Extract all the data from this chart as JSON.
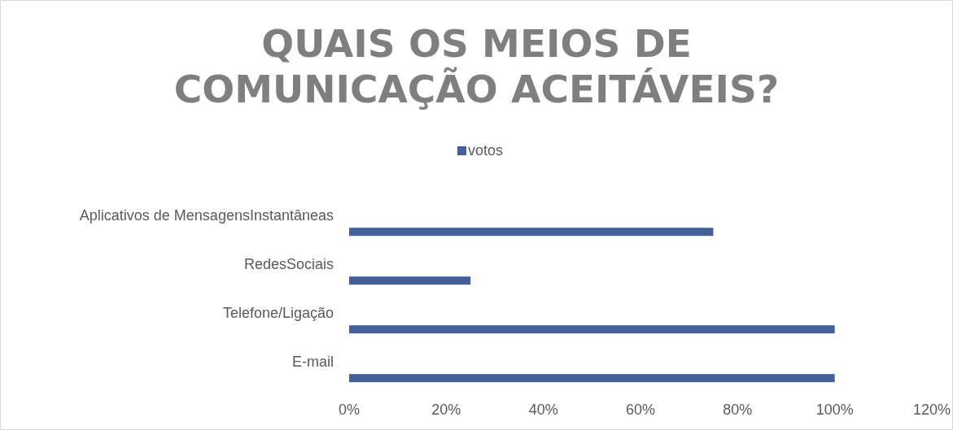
{
  "chart_data": {
    "type": "bar",
    "orientation": "horizontal",
    "title": "QUAIS OS MEIOS DE COMUNICAÇÃO ACEITÁVEIS?",
    "categories": [
      "Aplicativos de MensagensInstantâneas",
      "RedesSociais",
      "Telefone/Ligação",
      "E-mail"
    ],
    "series": [
      {
        "name": "votos",
        "color": "#44609a",
        "values": [
          75,
          25,
          100,
          100
        ]
      }
    ],
    "xlim": [
      0,
      120
    ],
    "xticks": [
      {
        "value": 0,
        "label": "0%"
      },
      {
        "value": 20,
        "label": "20%"
      },
      {
        "value": 40,
        "label": "40%"
      },
      {
        "value": 60,
        "label": "60%"
      },
      {
        "value": 80,
        "label": "80%"
      },
      {
        "value": 100,
        "label": "100%"
      },
      {
        "value": 120,
        "label": "120%"
      }
    ],
    "legend": "top",
    "grid": false
  }
}
